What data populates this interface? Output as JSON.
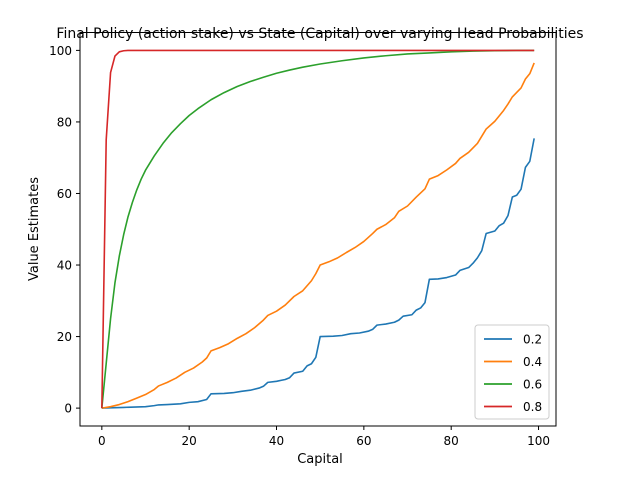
{
  "chart_data": {
    "type": "line",
    "title": "Final Policy (action stake) vs State (Capital) over varying Head Probabilities",
    "xlabel": "Capital",
    "ylabel": "Value Estimates",
    "xlim": [
      -5,
      104
    ],
    "ylim": [
      -5,
      105
    ],
    "xticks": [
      0,
      20,
      40,
      60,
      80,
      100
    ],
    "yticks": [
      0,
      20,
      40,
      60,
      80,
      100
    ],
    "grid": false,
    "legend": "lower-right",
    "series": [
      {
        "name": "0.2",
        "color": "#1f77b4",
        "points": [
          [
            0,
            0
          ],
          [
            5,
            0.2
          ],
          [
            10,
            0.4
          ],
          [
            12,
            0.7
          ],
          [
            13,
            0.9
          ],
          [
            15,
            1.0
          ],
          [
            18,
            1.2
          ],
          [
            20,
            1.6
          ],
          [
            22,
            1.8
          ],
          [
            24,
            2.4
          ],
          [
            25,
            4.0
          ],
          [
            28,
            4.1
          ],
          [
            30,
            4.3
          ],
          [
            32,
            4.7
          ],
          [
            34,
            5.0
          ],
          [
            36,
            5.6
          ],
          [
            37,
            6.1
          ],
          [
            38,
            7.2
          ],
          [
            40,
            7.5
          ],
          [
            42,
            8.0
          ],
          [
            43,
            8.5
          ],
          [
            44,
            9.8
          ],
          [
            46,
            10.3
          ],
          [
            47,
            11.8
          ],
          [
            48,
            12.4
          ],
          [
            49,
            14.2
          ],
          [
            50,
            20.0
          ],
          [
            53,
            20.1
          ],
          [
            55,
            20.3
          ],
          [
            57,
            20.8
          ],
          [
            59,
            21.0
          ],
          [
            61,
            21.5
          ],
          [
            62,
            22.0
          ],
          [
            63,
            23.2
          ],
          [
            65,
            23.5
          ],
          [
            67,
            24.0
          ],
          [
            68,
            24.6
          ],
          [
            69,
            25.7
          ],
          [
            71,
            26.1
          ],
          [
            72,
            27.4
          ],
          [
            73,
            28.0
          ],
          [
            74,
            29.5
          ],
          [
            75,
            36.0
          ],
          [
            77,
            36.1
          ],
          [
            79,
            36.5
          ],
          [
            81,
            37.2
          ],
          [
            82,
            38.5
          ],
          [
            84,
            39.3
          ],
          [
            85,
            40.5
          ],
          [
            86,
            42.0
          ],
          [
            87,
            44.0
          ],
          [
            88,
            48.8
          ],
          [
            90,
            49.5
          ],
          [
            91,
            51.0
          ],
          [
            92,
            51.7
          ],
          [
            93,
            53.8
          ],
          [
            94,
            59.0
          ],
          [
            95,
            59.5
          ],
          [
            96,
            61.2
          ],
          [
            97,
            67.3
          ],
          [
            98,
            69.0
          ],
          [
            99,
            75.4
          ]
        ]
      },
      {
        "name": "0.4",
        "color": "#ff7f0e",
        "points": [
          [
            0,
            0
          ],
          [
            2,
            0.4
          ],
          [
            4,
            1.0
          ],
          [
            6,
            1.8
          ],
          [
            8,
            2.8
          ],
          [
            10,
            3.8
          ],
          [
            12,
            5.2
          ],
          [
            13,
            6.2
          ],
          [
            15,
            7.2
          ],
          [
            17,
            8.4
          ],
          [
            19,
            10.0
          ],
          [
            21,
            11.2
          ],
          [
            23,
            12.9
          ],
          [
            24,
            14.0
          ],
          [
            25,
            16.0
          ],
          [
            27,
            16.9
          ],
          [
            29,
            18.0
          ],
          [
            31,
            19.5
          ],
          [
            33,
            20.8
          ],
          [
            35,
            22.5
          ],
          [
            37,
            24.6
          ],
          [
            38,
            25.9
          ],
          [
            40,
            27.1
          ],
          [
            42,
            28.8
          ],
          [
            44,
            31.2
          ],
          [
            46,
            32.8
          ],
          [
            48,
            35.6
          ],
          [
            49,
            37.6
          ],
          [
            50,
            40.0
          ],
          [
            52,
            40.9
          ],
          [
            54,
            42.0
          ],
          [
            56,
            43.5
          ],
          [
            58,
            44.9
          ],
          [
            60,
            46.6
          ],
          [
            62,
            48.8
          ],
          [
            63,
            50.0
          ],
          [
            65,
            51.3
          ],
          [
            67,
            53.2
          ],
          [
            68,
            55.0
          ],
          [
            70,
            56.5
          ],
          [
            72,
            59.0
          ],
          [
            74,
            61.3
          ],
          [
            75,
            64.0
          ],
          [
            77,
            65.0
          ],
          [
            79,
            66.6
          ],
          [
            81,
            68.4
          ],
          [
            82,
            69.8
          ],
          [
            84,
            71.5
          ],
          [
            86,
            74.0
          ],
          [
            88,
            78.0
          ],
          [
            90,
            80.2
          ],
          [
            92,
            83.2
          ],
          [
            93,
            85.0
          ],
          [
            94,
            87.0
          ],
          [
            96,
            89.5
          ],
          [
            97,
            92.0
          ],
          [
            98,
            93.5
          ],
          [
            99,
            96.5
          ]
        ]
      },
      {
        "name": "0.6",
        "color": "#2ca02c",
        "points": [
          [
            0,
            0
          ],
          [
            1,
            12.5
          ],
          [
            2,
            25.0
          ],
          [
            3,
            35.0
          ],
          [
            4,
            42.5
          ],
          [
            5,
            48.5
          ],
          [
            6,
            53.5
          ],
          [
            7,
            57.5
          ],
          [
            8,
            61.0
          ],
          [
            9,
            64.0
          ],
          [
            10,
            66.5
          ],
          [
            12,
            70.5
          ],
          [
            14,
            74.0
          ],
          [
            16,
            77.0
          ],
          [
            18,
            79.5
          ],
          [
            20,
            81.8
          ],
          [
            22,
            83.7
          ],
          [
            25,
            86.2
          ],
          [
            28,
            88.2
          ],
          [
            31,
            89.9
          ],
          [
            34,
            91.3
          ],
          [
            37,
            92.5
          ],
          [
            40,
            93.6
          ],
          [
            43,
            94.5
          ],
          [
            46,
            95.3
          ],
          [
            50,
            96.2
          ],
          [
            55,
            97.1
          ],
          [
            60,
            97.9
          ],
          [
            65,
            98.5
          ],
          [
            70,
            99.0
          ],
          [
            75,
            99.3
          ],
          [
            80,
            99.6
          ],
          [
            85,
            99.8
          ],
          [
            90,
            99.9
          ],
          [
            95,
            100
          ],
          [
            99,
            100
          ]
        ]
      },
      {
        "name": "0.8",
        "color": "#d62728",
        "points": [
          [
            0,
            0
          ],
          [
            1,
            75.0
          ],
          [
            2,
            93.8
          ],
          [
            3,
            98.4
          ],
          [
            4,
            99.6
          ],
          [
            5,
            99.9
          ],
          [
            6,
            100
          ],
          [
            10,
            100
          ],
          [
            20,
            100
          ],
          [
            40,
            100
          ],
          [
            60,
            100
          ],
          [
            80,
            100
          ],
          [
            99,
            100
          ]
        ]
      }
    ]
  }
}
